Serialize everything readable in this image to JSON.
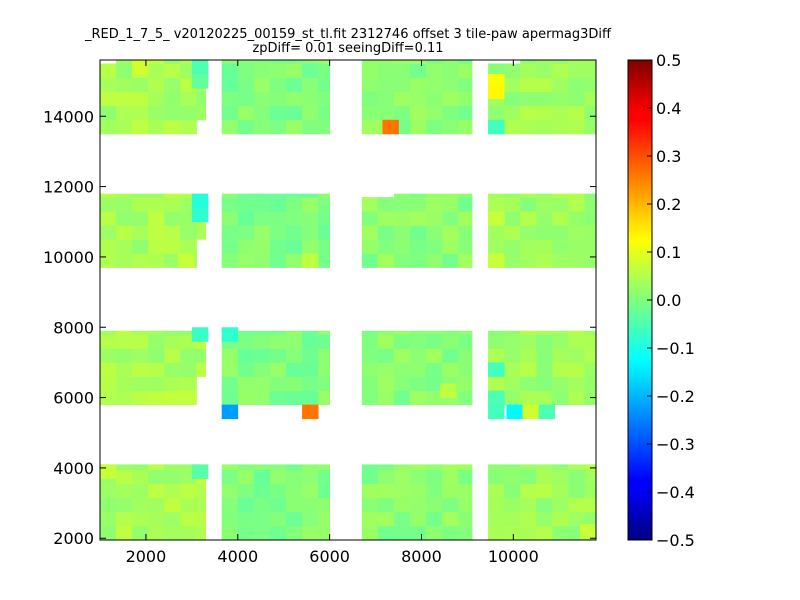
{
  "chart_data": {
    "type": "heatmap",
    "title": "_RED_1_7_5_ v20120225_00159_st_tl.fit 2312746 offset 3 tile-paw apermag3Diff",
    "subtitle": "zpDiff= 0.01 seeingDiff=0.11",
    "xlim": [
      1000,
      11800
    ],
    "ylim": [
      1950,
      15600
    ],
    "x_ticks": [
      2000,
      4000,
      6000,
      8000,
      10000
    ],
    "x_tick_labels": [
      "2000",
      "4000",
      "6000",
      "8000",
      "10000"
    ],
    "y_ticks": [
      2000,
      4000,
      6000,
      8000,
      10000,
      12000,
      14000
    ],
    "y_tick_labels": [
      "2000",
      "4000",
      "6000",
      "8000",
      "10000",
      "12000",
      "14000"
    ],
    "colorbar": {
      "colormap": "jet",
      "vmin": -0.5,
      "vmax": 0.5,
      "ticks": [
        0.5,
        0.4,
        0.3,
        0.2,
        0.1,
        0.0,
        -0.1,
        -0.2,
        -0.3,
        -0.4,
        -0.5
      ],
      "tick_labels": [
        "0.5",
        "0.4",
        "0.3",
        "0.2",
        "0.1",
        "0.0",
        "−0.1",
        "−0.2",
        "−0.3",
        "−0.4",
        "−0.5"
      ]
    },
    "cell_size": [
      350,
      400
    ],
    "columns": [
      {
        "x_range": [
          1000,
          3300
        ],
        "base_value": 0.04
      },
      {
        "x_range": [
          3650,
          6000
        ],
        "base_value": 0.0
      },
      {
        "x_range": [
          6700,
          9100
        ],
        "base_value": 0.01
      },
      {
        "x_range": [
          9450,
          11800
        ],
        "base_value": 0.03
      }
    ],
    "row_bands": [
      {
        "y_range": [
          1950,
          4100
        ]
      },
      {
        "y_range": [
          5800,
          7900
        ]
      },
      {
        "y_range": [
          9700,
          11800
        ]
      },
      {
        "y_range": [
          13500,
          15600
        ]
      }
    ],
    "missing_regions": [
      [
        1000,
        1350,
        15200,
        15600
      ],
      [
        3000,
        3300,
        13500,
        13700
      ],
      [
        6700,
        7100,
        11400,
        11800
      ],
      [
        9450,
        9850,
        15200,
        15600
      ],
      [
        3000,
        3300,
        9700,
        10300
      ],
      [
        3000,
        3300,
        5800,
        6600
      ],
      [
        1000,
        3300,
        5800,
        5400
      ]
    ],
    "highlight_cells": [
      {
        "x": 7150,
        "y": 13500,
        "value": 0.26
      },
      {
        "x": 9450,
        "y": 14800,
        "value": 0.12
      },
      {
        "x": 9450,
        "y": 14500,
        "value": 0.13
      },
      {
        "x": 3650,
        "y": 5400,
        "value": -0.22
      },
      {
        "x": 5400,
        "y": 5400,
        "value": 0.26
      },
      {
        "x": 9850,
        "y": 5400,
        "value": -0.13
      },
      {
        "x": 10200,
        "y": 5400,
        "value": 0.08
      },
      {
        "x": 10550,
        "y": 5400,
        "value": -0.05
      },
      {
        "x": 9450,
        "y": 5400,
        "value": -0.06
      },
      {
        "x": 9450,
        "y": 5800,
        "value": -0.05
      },
      {
        "x": 3650,
        "y": 7600,
        "value": -0.08
      },
      {
        "x": 3000,
        "y": 7600,
        "value": -0.07
      },
      {
        "x": 3000,
        "y": 11400,
        "value": -0.09
      },
      {
        "x": 3000,
        "y": 11000,
        "value": -0.08
      },
      {
        "x": 3000,
        "y": 15200,
        "value": -0.05
      },
      {
        "x": 3000,
        "y": 14800,
        "value": -0.03
      },
      {
        "x": 3000,
        "y": 3700,
        "value": -0.04
      },
      {
        "x": 9450,
        "y": 10900,
        "value": 0.07
      },
      {
        "x": 9450,
        "y": 9700,
        "value": 0.07
      },
      {
        "x": 9450,
        "y": 13500,
        "value": -0.06
      },
      {
        "x": 9450,
        "y": 6600,
        "value": -0.06
      },
      {
        "x": 1000,
        "y": 3700,
        "value": 0.07
      },
      {
        "x": 1700,
        "y": 15200,
        "value": 0.08
      },
      {
        "x": 2700,
        "y": 9700,
        "value": 0.07
      },
      {
        "x": 5400,
        "y": 9700,
        "value": 0.06
      },
      {
        "x": 8400,
        "y": 6000,
        "value": 0.06
      },
      {
        "x": 11450,
        "y": 2000,
        "value": 0.07
      }
    ]
  }
}
